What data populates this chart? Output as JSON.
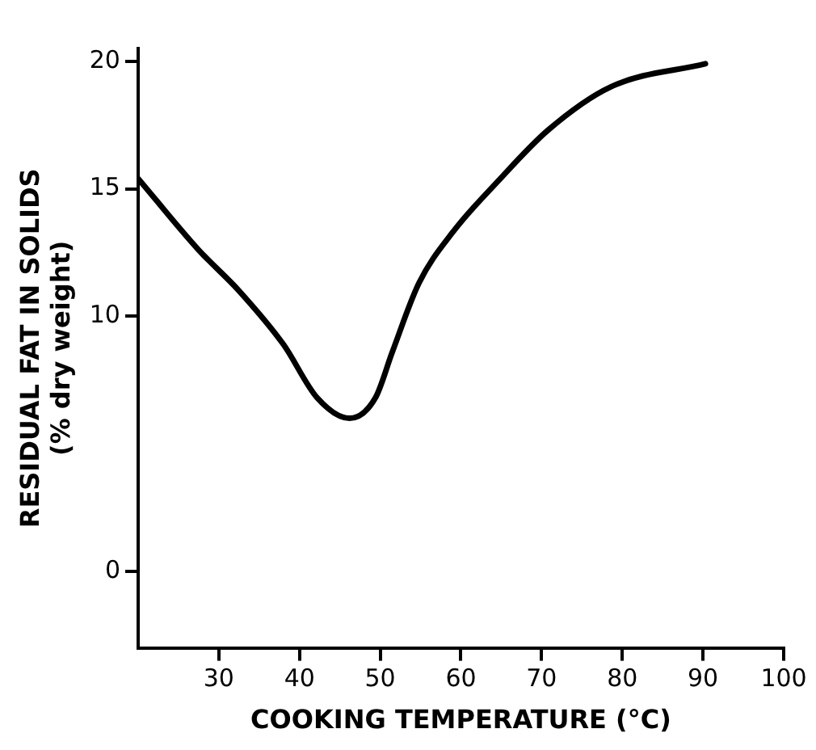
{
  "chart_data": {
    "type": "line",
    "xlabel": "COOKING TEMPERATURE (°C)",
    "ylabel": "RESIDUAL FAT IN SOLIDS\n(% dry weight)",
    "xlim": [
      20,
      100
    ],
    "xticks": [
      30,
      40,
      50,
      60,
      70,
      80,
      90,
      100
    ],
    "ylim": [
      -3,
      20.5
    ],
    "yticks": [
      0,
      10,
      15,
      20
    ],
    "grid": false,
    "legend": false,
    "marker": "none",
    "line_style": "solid",
    "series": [
      {
        "color": "#000000",
        "x": [
          20,
          27.5,
          32.5,
          38,
          42.2,
          46.2,
          49.4,
          51.5,
          54.8,
          59,
          64.6,
          70.8,
          78.6,
          90.3
        ],
        "values": [
          15.4,
          12.6,
          11.0,
          8.9,
          6.8,
          6.0,
          6.8,
          8.6,
          11.3,
          13.3,
          15.3,
          17.3,
          19.0,
          19.9
        ]
      }
    ]
  }
}
